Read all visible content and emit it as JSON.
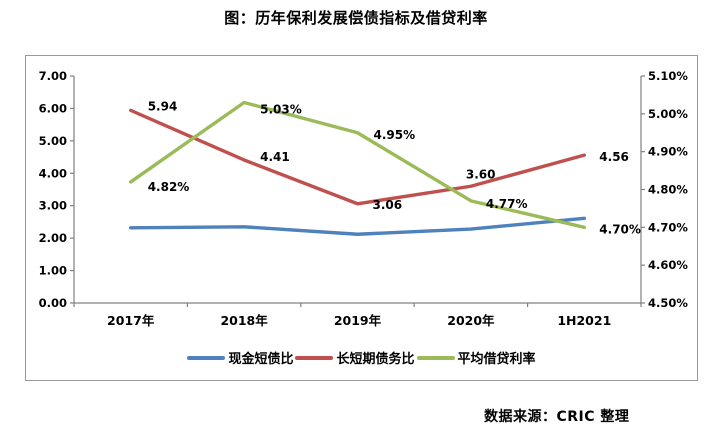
{
  "title": "图：历年保利发展偿债指标及借贷利率",
  "source": "数据来源：CRIC 整理",
  "chart_data": {
    "type": "line",
    "title": "图：历年保利发展偿债指标及借贷利率",
    "categories": [
      "2017年",
      "2018年",
      "2019年",
      "2020年",
      "1H2021"
    ],
    "grid": false,
    "legend_position": "bottom",
    "left_axis": {
      "min": 0,
      "max": 7,
      "step": 1,
      "ticks": [
        {
          "v": 0,
          "label": "0.00"
        },
        {
          "v": 1,
          "label": "1.00"
        },
        {
          "v": 2,
          "label": "2.00"
        },
        {
          "v": 3,
          "label": "3.00"
        },
        {
          "v": 4,
          "label": "4.00"
        },
        {
          "v": 5,
          "label": "5.00"
        },
        {
          "v": 6,
          "label": "6.00"
        },
        {
          "v": 7,
          "label": "7.00"
        }
      ]
    },
    "right_axis": {
      "min": 4.5,
      "max": 5.1,
      "step": 0.1,
      "ticks": [
        {
          "v": 4.5,
          "label": "4.50%"
        },
        {
          "v": 4.6,
          "label": "4.60%"
        },
        {
          "v": 4.7,
          "label": "4.70%"
        },
        {
          "v": 4.8,
          "label": "4.80%"
        },
        {
          "v": 4.9,
          "label": "4.90%"
        },
        {
          "v": 5.0,
          "label": "5.00%"
        },
        {
          "v": 5.1,
          "label": "5.10%"
        }
      ]
    },
    "series": [
      {
        "id": "cash-short-debt-ratio",
        "name": "现金短债比",
        "color": "#4F81BD",
        "axis": "left",
        "values": [
          2.32,
          2.35,
          2.12,
          2.28,
          2.61
        ],
        "labels": [
          "",
          "",
          "",
          "",
          ""
        ],
        "label_offsets": [
          [
            0,
            0
          ],
          [
            0,
            0
          ],
          [
            0,
            0
          ],
          [
            0,
            0
          ],
          [
            0,
            0
          ]
        ]
      },
      {
        "id": "long-short-term-debt-ratio",
        "name": "长短期债务比",
        "color": "#C0504D",
        "axis": "left",
        "values": [
          5.94,
          4.41,
          3.06,
          3.6,
          4.56
        ],
        "labels": [
          "5.94",
          "4.41",
          "3.06",
          "3.60",
          "4.56"
        ],
        "label_offsets": [
          [
            17,
            -4
          ],
          [
            16,
            -3
          ],
          [
            15,
            1
          ],
          [
            -5,
            -12
          ],
          [
            15,
            2
          ]
        ]
      },
      {
        "id": "average-borrowing-rate",
        "name": "平均借贷利率",
        "color": "#9BBB59",
        "axis": "right",
        "values": [
          4.82,
          5.03,
          4.95,
          4.77,
          4.7
        ],
        "labels": [
          "4.82%",
          "5.03%",
          "4.95%",
          "4.77%",
          "4.70%"
        ],
        "label_offsets": [
          [
            17,
            5
          ],
          [
            16,
            7
          ],
          [
            16,
            2
          ],
          [
            15,
            3
          ],
          [
            15,
            2
          ]
        ]
      }
    ]
  }
}
